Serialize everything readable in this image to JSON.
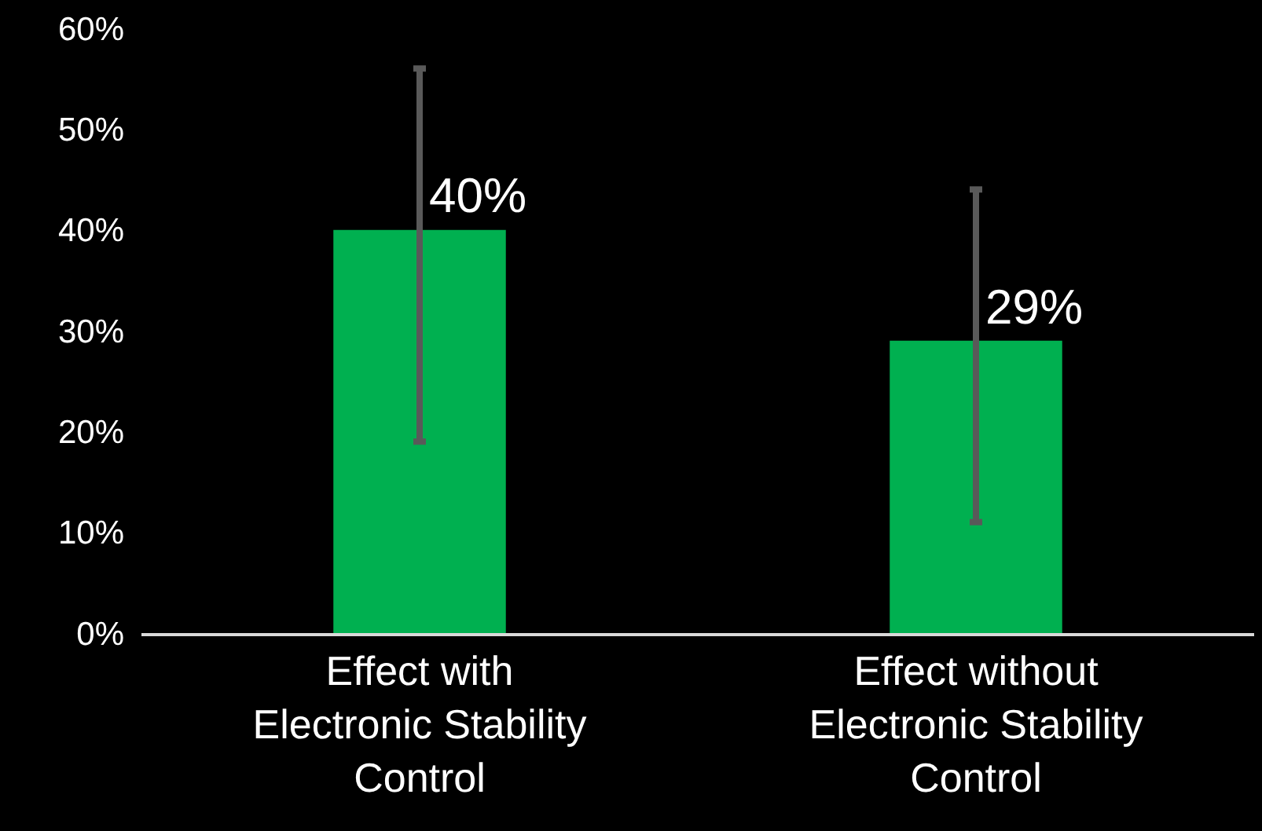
{
  "chart_data": {
    "type": "bar",
    "categories": [
      "Effect with Electronic Stability Control",
      "Effect without Electronic Stability Control"
    ],
    "values": [
      40,
      29
    ],
    "color": "#00b050",
    "errors": [
      [
        19,
        56
      ],
      [
        11,
        44
      ]
    ],
    "value_labels": [
      "40%",
      "29%"
    ],
    "ylim": [
      0,
      60
    ],
    "yticks": [
      {
        "value": 0,
        "label": "0%"
      },
      {
        "value": 10,
        "label": "10%"
      },
      {
        "value": 20,
        "label": "20%"
      },
      {
        "value": 30,
        "label": "30%"
      },
      {
        "value": 40,
        "label": "40%"
      },
      {
        "value": 50,
        "label": "50%"
      },
      {
        "value": 60,
        "label": "60%"
      }
    ],
    "grid": false
  }
}
